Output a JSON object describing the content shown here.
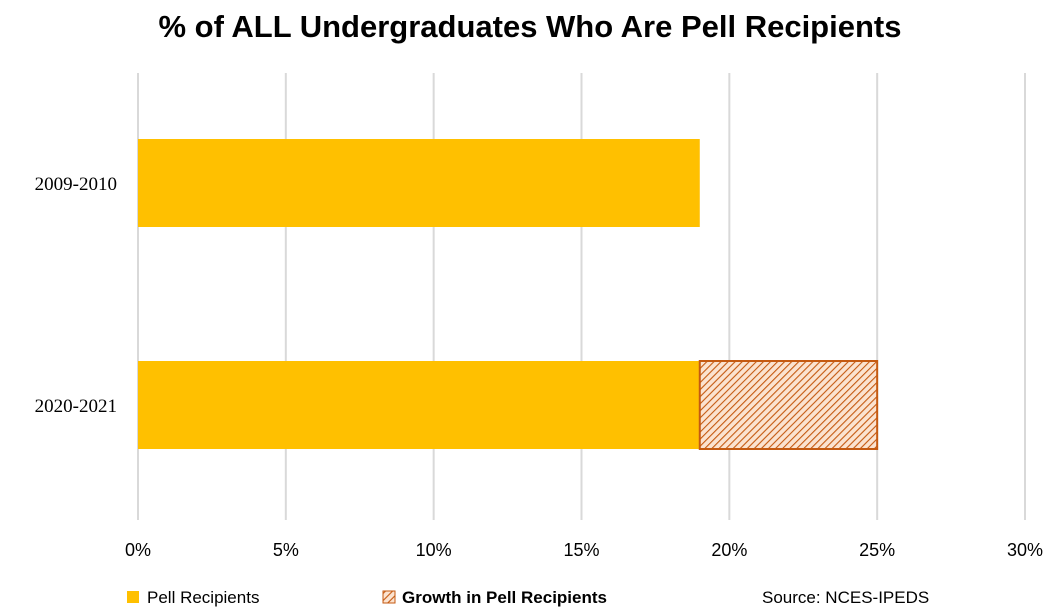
{
  "chart_data": {
    "type": "bar",
    "orientation": "horizontal",
    "stacked": true,
    "title": "% of ALL Undergraduates Who Are Pell Recipients",
    "categories": [
      "2009-2010",
      "2020-2021"
    ],
    "series": [
      {
        "name": "Pell Recipients",
        "values": [
          19,
          19
        ],
        "color": "#ffc000",
        "pattern": "solid"
      },
      {
        "name": "Growth in Pell Recipients",
        "values": [
          0,
          6
        ],
        "color": "#c55a11",
        "pattern": "diagonal-hatch"
      }
    ],
    "xlim": [
      0,
      30
    ],
    "x_ticks": [
      0,
      5,
      10,
      15,
      20,
      25,
      30
    ],
    "x_tick_labels": [
      "0%",
      "5%",
      "10%",
      "15%",
      "20%",
      "25%",
      "30%"
    ],
    "xlabel": "",
    "ylabel": "",
    "grid": true,
    "legend_position": "bottom",
    "source": "Source: NCES-IPEDS"
  }
}
